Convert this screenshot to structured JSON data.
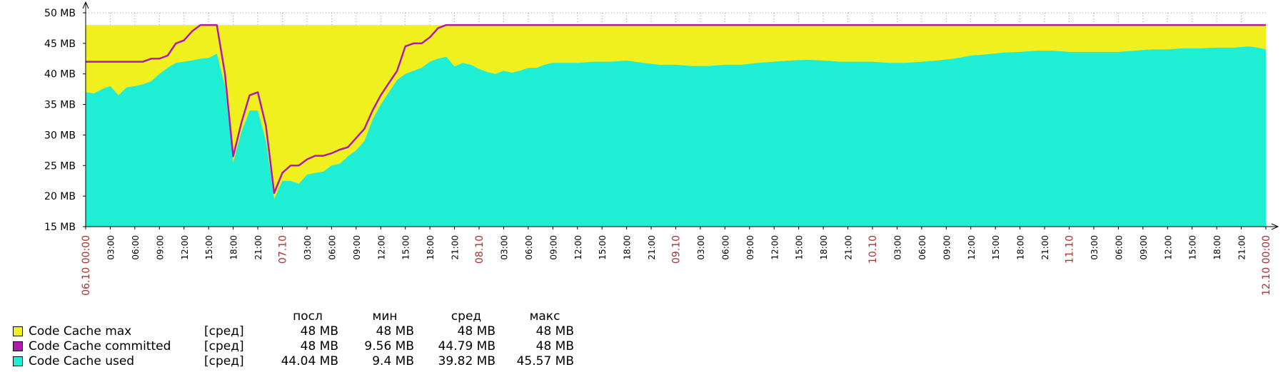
{
  "colors": {
    "max": "#f0f01e",
    "committed": "#b01ab0",
    "used": "#1eeed4",
    "grid": "#999999",
    "major_tick": "#a83232"
  },
  "chart_data": {
    "type": "area",
    "title": "",
    "ylabel": "",
    "xlabel": "",
    "ylim": [
      15,
      50
    ],
    "y_unit": "MB",
    "yticks": [
      "15 MB",
      "20 MB",
      "25 MB",
      "30 MB",
      "35 MB",
      "40 MB",
      "45 MB",
      "50 MB"
    ],
    "xlim_hours": [
      0,
      144
    ],
    "xticks": [
      {
        "label": "06.10 00:00",
        "major": true
      },
      {
        "label": "03:00"
      },
      {
        "label": "06:00"
      },
      {
        "label": "09:00"
      },
      {
        "label": "12:00"
      },
      {
        "label": "15:00"
      },
      {
        "label": "18:00"
      },
      {
        "label": "21:00"
      },
      {
        "label": "07.10",
        "major": true
      },
      {
        "label": "03:00"
      },
      {
        "label": "06:00"
      },
      {
        "label": "09:00"
      },
      {
        "label": "12:00"
      },
      {
        "label": "15:00"
      },
      {
        "label": "18:00"
      },
      {
        "label": "21:00"
      },
      {
        "label": "08.10",
        "major": true
      },
      {
        "label": "03:00"
      },
      {
        "label": "06:00"
      },
      {
        "label": "09:00"
      },
      {
        "label": "12:00"
      },
      {
        "label": "15:00"
      },
      {
        "label": "18:00"
      },
      {
        "label": "21:00"
      },
      {
        "label": "09.10",
        "major": true
      },
      {
        "label": "03:00"
      },
      {
        "label": "06:00"
      },
      {
        "label": "09:00"
      },
      {
        "label": "12:00"
      },
      {
        "label": "15:00"
      },
      {
        "label": "18:00"
      },
      {
        "label": "21:00"
      },
      {
        "label": "10.10",
        "major": true
      },
      {
        "label": "03:00"
      },
      {
        "label": "06:00"
      },
      {
        "label": "09:00"
      },
      {
        "label": "12:00"
      },
      {
        "label": "15:00"
      },
      {
        "label": "18:00"
      },
      {
        "label": "21:00"
      },
      {
        "label": "11.10",
        "major": true
      },
      {
        "label": "03:00"
      },
      {
        "label": "06:00"
      },
      {
        "label": "09:00"
      },
      {
        "label": "12:00"
      },
      {
        "label": "15:00"
      },
      {
        "label": "18:00"
      },
      {
        "label": "21:00"
      },
      {
        "label": "12.10 00:00",
        "major": true
      }
    ],
    "series": [
      {
        "name": "Code Cache max",
        "type": "area",
        "points": [
          [
            0,
            48
          ],
          [
            144,
            48
          ]
        ]
      },
      {
        "name": "Code Cache committed",
        "type": "line",
        "points": [
          [
            0,
            42
          ],
          [
            7,
            42
          ],
          [
            8,
            42.5
          ],
          [
            9,
            42.5
          ],
          [
            10,
            43
          ],
          [
            11,
            45
          ],
          [
            12,
            45.5
          ],
          [
            13,
            47
          ],
          [
            14,
            48
          ],
          [
            16,
            48
          ],
          [
            17,
            40
          ],
          [
            18,
            26.5
          ],
          [
            19,
            32
          ],
          [
            20,
            36.5
          ],
          [
            21,
            37
          ],
          [
            22,
            31.5
          ],
          [
            23,
            20.5
          ],
          [
            24,
            23.8
          ],
          [
            25,
            25
          ],
          [
            26,
            25
          ],
          [
            27,
            26
          ],
          [
            28,
            26.6
          ],
          [
            29,
            26.6
          ],
          [
            30,
            27
          ],
          [
            31,
            27.6
          ],
          [
            32,
            28
          ],
          [
            33,
            29.5
          ],
          [
            34,
            31
          ],
          [
            35,
            34
          ],
          [
            36,
            36.5
          ],
          [
            37,
            38.5
          ],
          [
            38,
            40.5
          ],
          [
            39,
            44.5
          ],
          [
            40,
            45
          ],
          [
            41,
            45
          ],
          [
            42,
            46
          ],
          [
            43,
            47.5
          ],
          [
            44,
            48
          ],
          [
            144,
            48
          ]
        ]
      },
      {
        "name": "Code Cache used",
        "type": "area",
        "points": [
          [
            0,
            37
          ],
          [
            1,
            36.8
          ],
          [
            2,
            37.5
          ],
          [
            3,
            38
          ],
          [
            4,
            36.5
          ],
          [
            5,
            37.8
          ],
          [
            6,
            38
          ],
          [
            7,
            38.3
          ],
          [
            8,
            38.8
          ],
          [
            9,
            40
          ],
          [
            10,
            41
          ],
          [
            11,
            41.8
          ],
          [
            12,
            42
          ],
          [
            13,
            42.2
          ],
          [
            14,
            42.5
          ],
          [
            15,
            42.6
          ],
          [
            16,
            43.3
          ],
          [
            17,
            38
          ],
          [
            18,
            25.5
          ],
          [
            19,
            30.5
          ],
          [
            20,
            34
          ],
          [
            21,
            34
          ],
          [
            22,
            29
          ],
          [
            23,
            19.5
          ],
          [
            24,
            22.5
          ],
          [
            25,
            22.5
          ],
          [
            26,
            22
          ],
          [
            27,
            23.5
          ],
          [
            28,
            23.8
          ],
          [
            29,
            24
          ],
          [
            30,
            25
          ],
          [
            31,
            25.3
          ],
          [
            32,
            26.5
          ],
          [
            33,
            27.5
          ],
          [
            34,
            29
          ],
          [
            35,
            32.5
          ],
          [
            36,
            35
          ],
          [
            37,
            37
          ],
          [
            38,
            39
          ],
          [
            39,
            40
          ],
          [
            40,
            40.5
          ],
          [
            41,
            41
          ],
          [
            42,
            42
          ],
          [
            43,
            42.5
          ],
          [
            44,
            42.8
          ],
          [
            45,
            41.2
          ],
          [
            46,
            41.8
          ],
          [
            47,
            41.5
          ],
          [
            48,
            40.8
          ],
          [
            49,
            40.3
          ],
          [
            50,
            40
          ],
          [
            51,
            40.5
          ],
          [
            52,
            40.2
          ],
          [
            53,
            40.5
          ],
          [
            54,
            41
          ],
          [
            55,
            41
          ],
          [
            56,
            41.5
          ],
          [
            57,
            41.8
          ],
          [
            58,
            41.8
          ],
          [
            60,
            41.8
          ],
          [
            62,
            42
          ],
          [
            64,
            42
          ],
          [
            66,
            42.2
          ],
          [
            68,
            41.8
          ],
          [
            70,
            41.5
          ],
          [
            72,
            41.5
          ],
          [
            74,
            41.3
          ],
          [
            76,
            41.3
          ],
          [
            78,
            41.5
          ],
          [
            80,
            41.5
          ],
          [
            82,
            41.8
          ],
          [
            84,
            42
          ],
          [
            86,
            42.2
          ],
          [
            88,
            42.3
          ],
          [
            90,
            42.2
          ],
          [
            92,
            42
          ],
          [
            94,
            42
          ],
          [
            96,
            42
          ],
          [
            98,
            41.8
          ],
          [
            100,
            41.8
          ],
          [
            102,
            42
          ],
          [
            104,
            42.2
          ],
          [
            106,
            42.5
          ],
          [
            108,
            43
          ],
          [
            110,
            43.2
          ],
          [
            112,
            43.5
          ],
          [
            114,
            43.6
          ],
          [
            116,
            43.8
          ],
          [
            118,
            43.8
          ],
          [
            120,
            43.6
          ],
          [
            122,
            43.6
          ],
          [
            124,
            43.6
          ],
          [
            126,
            43.6
          ],
          [
            128,
            43.8
          ],
          [
            130,
            44
          ],
          [
            132,
            44
          ],
          [
            134,
            44.2
          ],
          [
            136,
            44.2
          ],
          [
            138,
            44.3
          ],
          [
            140,
            44.3
          ],
          [
            142,
            44.5
          ],
          [
            143,
            44.3
          ],
          [
            144,
            44
          ]
        ]
      }
    ]
  },
  "legend": {
    "headers": [
      "посл",
      "мин",
      "сред",
      "макс"
    ],
    "rows": [
      {
        "name": "Code Cache max",
        "func": "[сред]",
        "last": "48 MB",
        "min": "48 MB",
        "avg": "48 MB",
        "max": "48 MB"
      },
      {
        "name": "Code Cache committed",
        "func": "[сред]",
        "last": "48 MB",
        "min": "9.56 MB",
        "avg": "44.79 MB",
        "max": "48 MB"
      },
      {
        "name": "Code Cache used",
        "func": "[сред]",
        "last": "44.04 MB",
        "min": "9.4 MB",
        "avg": "39.82 MB",
        "max": "45.57 MB"
      }
    ]
  }
}
